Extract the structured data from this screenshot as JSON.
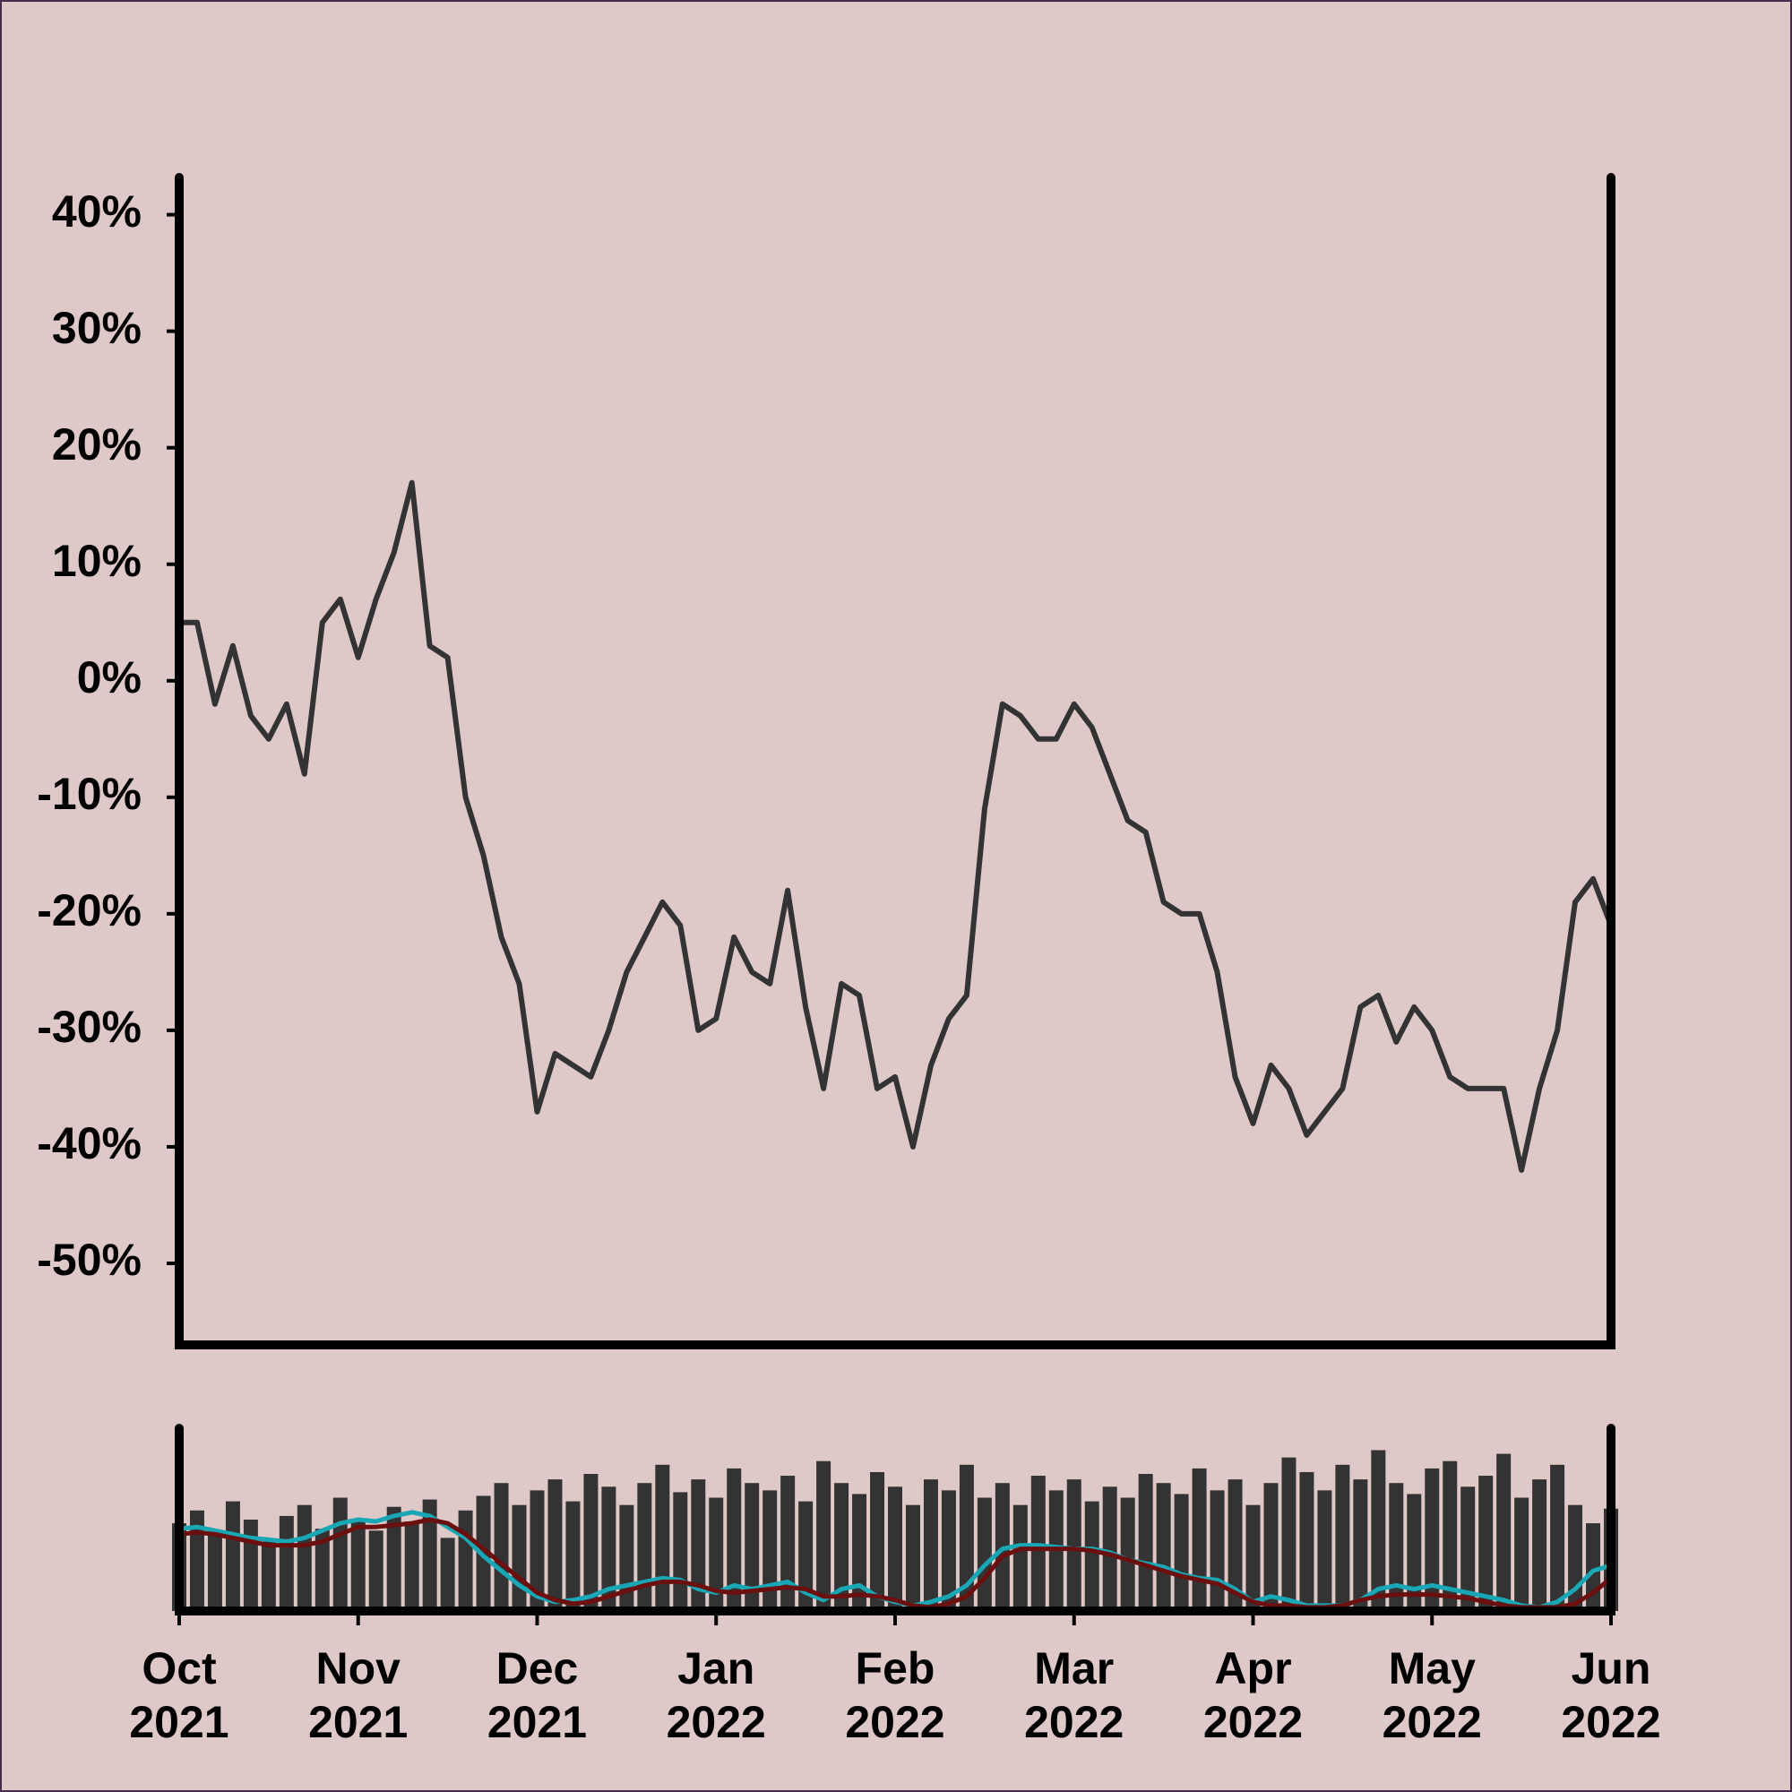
{
  "chart_data": [
    {
      "type": "line",
      "xlim": [
        0,
        8
      ],
      "x": [
        0,
        0.1,
        0.2,
        0.3,
        0.4,
        0.5,
        0.6,
        0.7,
        0.8,
        0.9,
        1,
        1.1,
        1.2,
        1.3,
        1.4,
        1.5,
        1.6,
        1.7,
        1.8,
        1.9,
        2,
        2.1,
        2.2,
        2.3,
        2.4,
        2.5,
        2.6,
        2.7,
        2.8,
        2.9,
        3,
        3.1,
        3.2,
        3.3,
        3.4,
        3.5,
        3.6,
        3.7,
        3.8,
        3.9,
        4,
        4.1,
        4.2,
        4.3,
        4.4,
        4.5,
        4.6,
        4.7,
        4.8,
        4.9,
        5,
        5.1,
        5.2,
        5.3,
        5.4,
        5.5,
        5.6,
        5.7,
        5.8,
        5.9,
        6,
        6.1,
        6.2,
        6.3,
        6.4,
        6.5,
        6.6,
        6.7,
        6.8,
        6.9,
        7,
        7.1,
        7.2,
        7.3,
        7.4,
        7.5,
        7.6,
        7.7,
        7.8,
        7.9,
        8
      ],
      "values": [
        5,
        5,
        -2,
        3,
        -3,
        -5,
        -2,
        -8,
        5,
        7,
        2,
        7,
        11,
        17,
        3,
        2,
        -10,
        -15,
        -22,
        -26,
        -37,
        -32,
        -33,
        -34,
        -30,
        -25,
        -22,
        -19,
        -21,
        -30,
        -29,
        -22,
        -25,
        -26,
        -18,
        -28,
        -35,
        -26,
        -27,
        -35,
        -34,
        -40,
        -33,
        -29,
        -27,
        -11,
        -2,
        -3,
        -5,
        -5,
        -2,
        -4,
        -8,
        -12,
        -13,
        -19,
        -20,
        -20,
        -25,
        -34,
        -38,
        -33,
        -35,
        -39,
        -37,
        -35,
        -28,
        -27,
        -31,
        -28,
        -30,
        -34,
        -35,
        -35,
        -35,
        -42,
        -35,
        -30,
        -19,
        -17,
        -21
      ],
      "color": "#333333",
      "ylim": [
        -57,
        43.2
      ],
      "yticks": [
        {
          "value": -50,
          "label": "-50%"
        },
        {
          "value": -40,
          "label": "-40%"
        },
        {
          "value": -30,
          "label": "-30%"
        },
        {
          "value": -20,
          "label": "-20%"
        },
        {
          "value": -10,
          "label": "-10%"
        },
        {
          "value": 0,
          "label": "0%"
        },
        {
          "value": 10,
          "label": "10%"
        },
        {
          "value": 20,
          "label": "20%"
        },
        {
          "value": 30,
          "label": "30%"
        },
        {
          "value": 40,
          "label": "40%"
        }
      ]
    },
    {
      "type": "bar",
      "ylim": [
        0,
        100
      ],
      "xticks": [
        {
          "value": 0,
          "label": [
            "Oct",
            "2021"
          ]
        },
        {
          "value": 1,
          "label": [
            "Nov",
            "2021"
          ]
        },
        {
          "value": 2,
          "label": [
            "Dec",
            "2021"
          ]
        },
        {
          "value": 3,
          "label": [
            "Jan",
            "2022"
          ]
        },
        {
          "value": 4,
          "label": [
            "Feb",
            "2022"
          ]
        },
        {
          "value": 5,
          "label": [
            "Mar",
            "2022"
          ]
        },
        {
          "value": 6,
          "label": [
            "Apr",
            "2022"
          ]
        },
        {
          "value": 7,
          "label": [
            "May",
            "2022"
          ]
        },
        {
          "value": 8,
          "label": [
            "Jun",
            "2022"
          ]
        }
      ],
      "series": [
        {
          "type": "bar",
          "color": "#333333",
          "values": [
            48,
            55,
            42,
            60,
            50,
            38,
            52,
            58,
            45,
            62,
            50,
            44,
            57,
            49,
            61,
            40,
            55,
            63,
            70,
            58,
            66,
            72,
            60,
            75,
            68,
            58,
            70,
            80,
            65,
            72,
            62,
            78,
            70,
            66,
            74,
            60,
            82,
            70,
            64,
            76,
            68,
            58,
            72,
            66,
            80,
            62,
            70,
            58,
            74,
            66,
            72,
            60,
            68,
            62,
            75,
            70,
            64,
            78,
            66,
            72,
            58,
            70,
            84,
            76,
            66,
            80,
            72,
            88,
            70,
            64,
            78,
            82,
            68,
            74,
            86,
            62,
            72,
            80,
            58,
            48,
            56
          ]
        },
        {
          "type": "line",
          "color": "#1aa7b5",
          "values": [
            45,
            46,
            44,
            42,
            40,
            39,
            38,
            40,
            44,
            48,
            50,
            49,
            52,
            54,
            52,
            46,
            40,
            30,
            22,
            14,
            8,
            5,
            6,
            8,
            12,
            14,
            16,
            18,
            17,
            12,
            10,
            14,
            12,
            14,
            16,
            10,
            6,
            12,
            14,
            8,
            5,
            3,
            5,
            8,
            14,
            25,
            34,
            36,
            36,
            35,
            34,
            34,
            32,
            28,
            26,
            24,
            20,
            18,
            17,
            12,
            5,
            8,
            6,
            3,
            3,
            3,
            6,
            12,
            14,
            12,
            14,
            12,
            10,
            8,
            6,
            3,
            2,
            5,
            12,
            22,
            25
          ]
        },
        {
          "type": "line",
          "color": "#6b0f0f",
          "values": [
            42,
            43,
            42,
            40,
            38,
            36,
            36,
            36,
            38,
            42,
            46,
            46,
            47,
            48,
            50,
            48,
            42,
            34,
            26,
            18,
            10,
            6,
            4,
            5,
            8,
            11,
            14,
            16,
            16,
            14,
            11,
            10,
            11,
            12,
            13,
            12,
            8,
            8,
            9,
            8,
            6,
            3,
            2,
            4,
            8,
            18,
            30,
            34,
            34,
            34,
            34,
            33,
            31,
            28,
            25,
            22,
            19,
            17,
            15,
            10,
            5,
            3,
            3,
            2,
            2,
            3,
            6,
            8,
            9,
            9,
            9,
            8,
            7,
            5,
            3,
            2,
            2,
            2,
            4,
            10,
            18
          ]
        }
      ]
    }
  ]
}
